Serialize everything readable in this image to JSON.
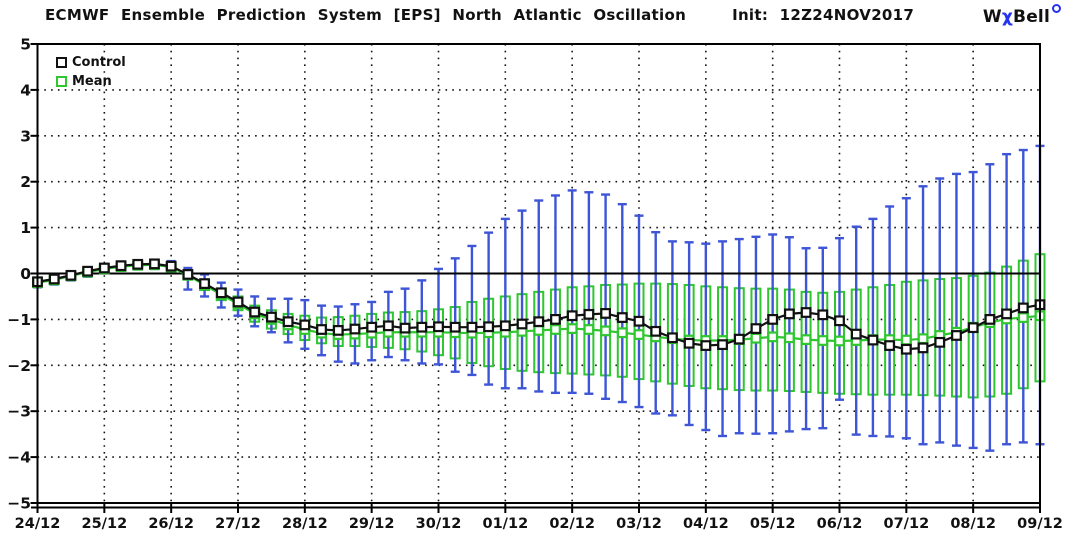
{
  "header": {
    "title": "ECMWF Ensemble Prediction System [EPS] North Atlantic Oscillation",
    "init": "Init: 12Z24NOV2017",
    "logo": {
      "w": "W",
      "chi": "χ",
      "bell": "Bell"
    }
  },
  "legend": {
    "control_label": "Control",
    "mean_label": "Mean"
  },
  "colors": {
    "control_black": "#111111",
    "mean_green": "#2fc62f",
    "whisker_blue": "#3d55d6",
    "logo_blue": "#2433ee",
    "background": "#ffffff"
  },
  "chart_data": {
    "type": "line",
    "subtype": "ensemble plume: control + mean lines with green spread boxes and blue min/max whiskers, 6-hourly steps",
    "title": "ECMWF Ensemble Prediction System [EPS] North Atlantic Oscillation",
    "init_time": "12Z24NOV2017",
    "ylim": [
      -5,
      5
    ],
    "ytick_step": 1,
    "zero_line": true,
    "grid": "dotted",
    "legend_position": "top-left inside",
    "x_axis": {
      "tick_labels": [
        "24/12",
        "25/12",
        "26/12",
        "27/12",
        "28/12",
        "29/12",
        "30/12",
        "01/12",
        "02/12",
        "03/12",
        "04/12",
        "05/12",
        "06/12",
        "07/12",
        "08/12",
        "09/12"
      ],
      "points_per_day": 4
    },
    "series": [
      {
        "name": "Control",
        "style": "black line, open square markers",
        "values": [
          -0.18,
          -0.12,
          -0.04,
          0.05,
          0.12,
          0.17,
          0.2,
          0.21,
          0.16,
          -0.02,
          -0.22,
          -0.42,
          -0.62,
          -0.84,
          -0.95,
          -1.05,
          -1.12,
          -1.22,
          -1.24,
          -1.21,
          -1.17,
          -1.14,
          -1.19,
          -1.17,
          -1.16,
          -1.17,
          -1.17,
          -1.16,
          -1.14,
          -1.1,
          -1.05,
          -1.0,
          -0.92,
          -0.89,
          -0.87,
          -0.96,
          -1.04,
          -1.26,
          -1.4,
          -1.52,
          -1.57,
          -1.55,
          -1.43,
          -1.2,
          -1.0,
          -0.88,
          -0.85,
          -0.9,
          -1.03,
          -1.32,
          -1.45,
          -1.57,
          -1.65,
          -1.62,
          -1.5,
          -1.35,
          -1.18,
          -1.0,
          -0.88,
          -0.75,
          -0.68
        ]
      },
      {
        "name": "Mean",
        "style": "green line, open square markers",
        "values": [
          -0.2,
          -0.14,
          -0.05,
          0.03,
          0.1,
          0.15,
          0.18,
          0.19,
          0.14,
          -0.04,
          -0.25,
          -0.46,
          -0.66,
          -0.88,
          -1.0,
          -1.12,
          -1.22,
          -1.3,
          -1.33,
          -1.32,
          -1.3,
          -1.28,
          -1.28,
          -1.28,
          -1.28,
          -1.29,
          -1.3,
          -1.29,
          -1.28,
          -1.26,
          -1.24,
          -1.22,
          -1.2,
          -1.22,
          -1.25,
          -1.29,
          -1.33,
          -1.38,
          -1.42,
          -1.45,
          -1.46,
          -1.46,
          -1.44,
          -1.41,
          -1.38,
          -1.4,
          -1.44,
          -1.46,
          -1.47,
          -1.46,
          -1.44,
          -1.44,
          -1.45,
          -1.42,
          -1.35,
          -1.28,
          -1.17,
          -1.07,
          -0.99,
          -0.96,
          -0.92
        ]
      }
    ],
    "box_range": {
      "top": [
        -0.12,
        -0.07,
        0.0,
        0.08,
        0.16,
        0.21,
        0.24,
        0.25,
        0.21,
        0.04,
        -0.14,
        -0.33,
        -0.5,
        -0.7,
        -0.8,
        -0.88,
        -0.92,
        -0.96,
        -0.95,
        -0.92,
        -0.88,
        -0.85,
        -0.84,
        -0.82,
        -0.78,
        -0.73,
        -0.62,
        -0.55,
        -0.5,
        -0.45,
        -0.4,
        -0.35,
        -0.3,
        -0.28,
        -0.25,
        -0.24,
        -0.22,
        -0.22,
        -0.23,
        -0.25,
        -0.28,
        -0.3,
        -0.32,
        -0.33,
        -0.33,
        -0.35,
        -0.4,
        -0.42,
        -0.4,
        -0.35,
        -0.3,
        -0.25,
        -0.18,
        -0.15,
        -0.12,
        -0.1,
        -0.05,
        0.02,
        0.15,
        0.28,
        0.42
      ],
      "bottom": [
        -0.28,
        -0.22,
        -0.12,
        -0.03,
        0.05,
        0.1,
        0.13,
        0.14,
        0.08,
        -0.12,
        -0.36,
        -0.58,
        -0.8,
        -1.05,
        -1.2,
        -1.32,
        -1.45,
        -1.52,
        -1.58,
        -1.58,
        -1.6,
        -1.62,
        -1.65,
        -1.7,
        -1.78,
        -1.85,
        -1.95,
        -2.02,
        -2.08,
        -2.12,
        -2.15,
        -2.17,
        -2.18,
        -2.2,
        -2.22,
        -2.25,
        -2.3,
        -2.35,
        -2.4,
        -2.45,
        -2.5,
        -2.52,
        -2.54,
        -2.55,
        -2.55,
        -2.56,
        -2.58,
        -2.6,
        -2.62,
        -2.63,
        -2.64,
        -2.64,
        -2.64,
        -2.65,
        -2.66,
        -2.68,
        -2.7,
        -2.68,
        -2.62,
        -2.5,
        -2.35
      ]
    },
    "whisker_range": {
      "top": [
        -0.1,
        -0.04,
        0.04,
        0.13,
        0.2,
        0.26,
        0.29,
        0.3,
        0.27,
        0.12,
        -0.02,
        -0.2,
        -0.35,
        -0.5,
        -0.55,
        -0.55,
        -0.58,
        -0.7,
        -0.72,
        -0.67,
        -0.62,
        -0.4,
        -0.33,
        -0.15,
        0.1,
        0.33,
        0.6,
        0.89,
        1.19,
        1.37,
        1.59,
        1.7,
        1.81,
        1.77,
        1.72,
        1.51,
        1.26,
        0.9,
        0.7,
        0.68,
        0.65,
        0.7,
        0.75,
        0.8,
        0.85,
        0.79,
        0.55,
        0.56,
        0.77,
        1.02,
        1.19,
        1.46,
        1.64,
        1.9,
        2.07,
        2.17,
        2.21,
        2.38,
        2.6,
        2.69,
        2.78
      ],
      "bottom": [
        -0.3,
        -0.24,
        -0.15,
        -0.07,
        0.01,
        0.06,
        0.09,
        0.1,
        0.02,
        -0.35,
        -0.5,
        -0.74,
        -0.92,
        -1.15,
        -1.28,
        -1.5,
        -1.64,
        -1.78,
        -1.92,
        -1.96,
        -1.89,
        -1.82,
        -1.89,
        -1.96,
        -1.98,
        -2.14,
        -2.21,
        -2.42,
        -2.5,
        -2.5,
        -2.57,
        -2.6,
        -2.6,
        -2.62,
        -2.73,
        -2.8,
        -2.91,
        -3.05,
        -3.09,
        -3.3,
        -3.41,
        -3.54,
        -3.48,
        -3.49,
        -3.48,
        -3.44,
        -3.39,
        -3.37,
        -2.75,
        -3.51,
        -3.54,
        -3.55,
        -3.59,
        -3.72,
        -3.68,
        -3.75,
        -3.8,
        -3.86,
        -3.72,
        -3.68,
        -3.72
      ]
    }
  }
}
